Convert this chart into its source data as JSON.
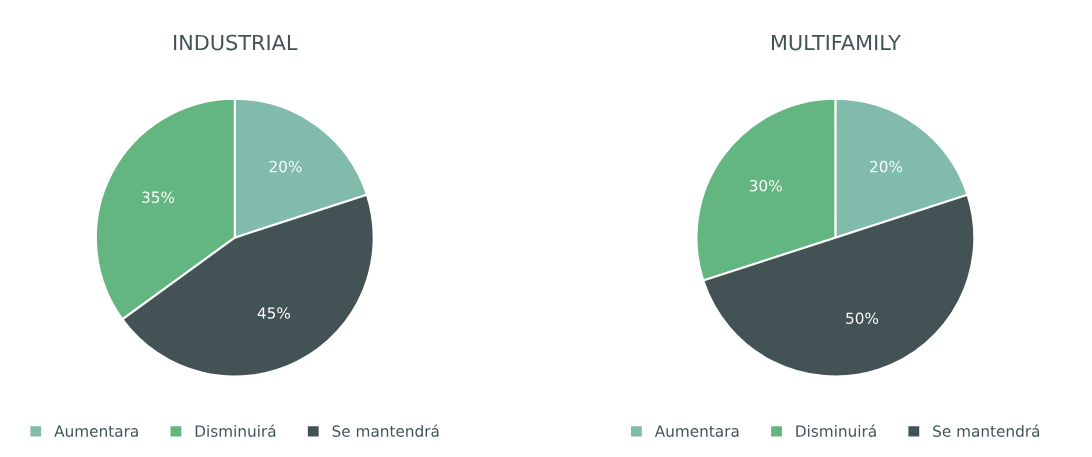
{
  "chart_data": [
    {
      "type": "pie",
      "title": "INDUSTRIAL",
      "categories": [
        "Aumentara",
        "Disminuirá",
        "Se mantendrá"
      ],
      "values": [
        20,
        35,
        45
      ],
      "colors": [
        "#80bbab",
        "#63b680",
        "#435254"
      ],
      "value_labels": [
        "20%",
        "35%",
        "45%"
      ],
      "legend": "bottom"
    },
    {
      "type": "pie",
      "title": "MULTIFAMILY",
      "categories": [
        "Aumentara",
        "Disminuirá",
        "Se mantendrá"
      ],
      "values": [
        20,
        30,
        50
      ],
      "colors": [
        "#80bbab",
        "#63b680",
        "#435254"
      ],
      "value_labels": [
        "20%",
        "30%",
        "50%"
      ],
      "legend": "bottom"
    }
  ]
}
